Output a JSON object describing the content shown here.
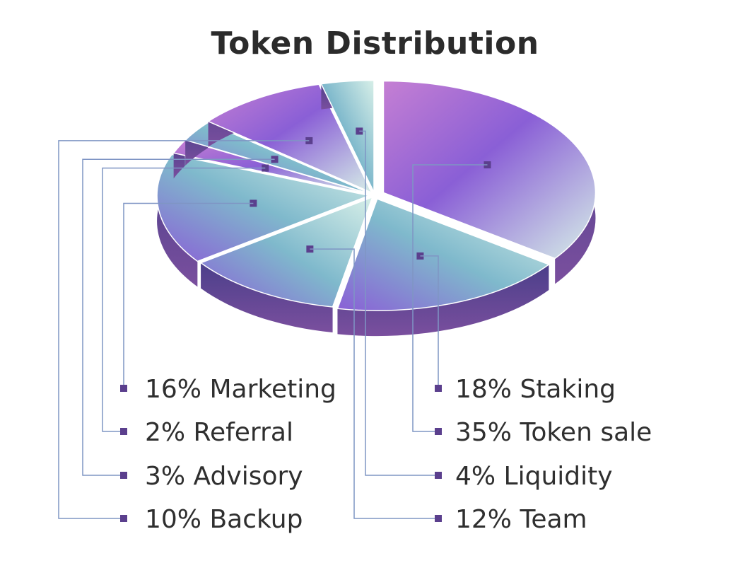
{
  "chart_data": {
    "type": "pie",
    "title": "Token Distribution",
    "slices": [
      {
        "label": "35% Token sale",
        "value": 35,
        "name": "Token sale"
      },
      {
        "label": "18% Staking",
        "value": 18,
        "name": "Staking"
      },
      {
        "label": "12% Team",
        "value": 12,
        "name": "Team"
      },
      {
        "label": "16% Marketing",
        "value": 16,
        "name": "Marketing"
      },
      {
        "label": "2% Referral",
        "value": 2,
        "name": "Referral"
      },
      {
        "label": "3% Advisory",
        "value": 3,
        "name": "Advisory"
      },
      {
        "label": "10% Backup",
        "value": 10,
        "name": "Backup"
      },
      {
        "label": "4% Liquidity",
        "value": 4,
        "name": "Liquidity"
      }
    ],
    "legend_left": [
      "16% Marketing",
      "2% Referral",
      "3% Advisory",
      "10% Backup"
    ],
    "legend_right": [
      "18% Staking",
      "35% Token sale",
      "4% Liquidity",
      "12% Team"
    ],
    "colors": {
      "violet": "#8a5fd6",
      "magenta": "#c57fd3",
      "mint": "#d7efe8",
      "teal": "#7fb9cc",
      "side": "#5a3d8e",
      "leader": "#7f95c4",
      "marker": "#5b3f8d"
    }
  }
}
